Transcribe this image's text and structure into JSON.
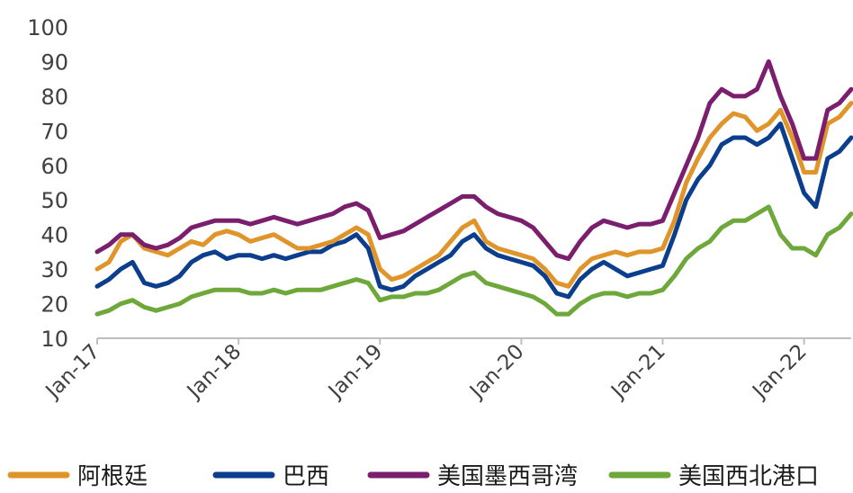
{
  "chart_data": {
    "type": "line",
    "title": "",
    "xlabel": "",
    "ylabel": "",
    "ylim": [
      10,
      100
    ],
    "yticks": [
      10,
      20,
      30,
      40,
      50,
      60,
      70,
      80,
      90,
      100
    ],
    "xlim": [
      "2017-01",
      "2022-05"
    ],
    "x_tick_labels": [
      "Jan-17",
      "Jan-18",
      "Jan-19",
      "Jan-20",
      "Jan-21",
      "Jan-22"
    ],
    "grid": false,
    "legend_position": "bottom",
    "x": [
      "2017-01",
      "2017-02",
      "2017-03",
      "2017-04",
      "2017-05",
      "2017-06",
      "2017-07",
      "2017-08",
      "2017-09",
      "2017-10",
      "2017-11",
      "2017-12",
      "2018-01",
      "2018-02",
      "2018-03",
      "2018-04",
      "2018-05",
      "2018-06",
      "2018-07",
      "2018-08",
      "2018-09",
      "2018-10",
      "2018-11",
      "2018-12",
      "2019-01",
      "2019-02",
      "2019-03",
      "2019-04",
      "2019-05",
      "2019-06",
      "2019-07",
      "2019-08",
      "2019-09",
      "2019-10",
      "2019-11",
      "2019-12",
      "2020-01",
      "2020-02",
      "2020-03",
      "2020-04",
      "2020-05",
      "2020-06",
      "2020-07",
      "2020-08",
      "2020-09",
      "2020-10",
      "2020-11",
      "2020-12",
      "2021-01",
      "2021-02",
      "2021-03",
      "2021-04",
      "2021-05",
      "2021-06",
      "2021-07",
      "2021-08",
      "2021-09",
      "2021-10",
      "2021-11",
      "2021-12",
      "2022-01",
      "2022-02",
      "2022-03",
      "2022-04",
      "2022-05"
    ],
    "series": [
      {
        "name": "阿根廷",
        "color": "#E0952A",
        "values": [
          30,
          32,
          38,
          40,
          36,
          35,
          34,
          36,
          38,
          37,
          40,
          41,
          40,
          38,
          39,
          40,
          38,
          36,
          36,
          37,
          38,
          40,
          42,
          40,
          30,
          27,
          28,
          30,
          32,
          34,
          38,
          42,
          44,
          38,
          36,
          35,
          34,
          33,
          30,
          26,
          25,
          30,
          33,
          34,
          35,
          34,
          35,
          35,
          36,
          44,
          55,
          62,
          68,
          72,
          75,
          74,
          70,
          72,
          76,
          68,
          58,
          58,
          72,
          74,
          78
        ]
      },
      {
        "name": "巴西",
        "color": "#0B3E8C",
        "values": [
          25,
          27,
          30,
          32,
          26,
          25,
          26,
          28,
          32,
          34,
          35,
          33,
          34,
          34,
          33,
          34,
          33,
          34,
          35,
          35,
          37,
          38,
          40,
          36,
          25,
          24,
          25,
          28,
          30,
          32,
          34,
          38,
          40,
          36,
          34,
          33,
          32,
          31,
          28,
          23,
          22,
          27,
          30,
          32,
          30,
          28,
          29,
          30,
          31,
          40,
          50,
          56,
          60,
          66,
          68,
          68,
          66,
          68,
          72,
          62,
          52,
          48,
          62,
          64,
          68
        ]
      },
      {
        "name": "美国墨西哥湾",
        "color": "#7B1E6E",
        "values": [
          35,
          37,
          40,
          40,
          37,
          36,
          37,
          39,
          42,
          43,
          44,
          44,
          44,
          43,
          44,
          45,
          44,
          43,
          44,
          45,
          46,
          48,
          49,
          47,
          39,
          40,
          41,
          43,
          45,
          47,
          49,
          51,
          51,
          48,
          46,
          45,
          44,
          42,
          38,
          34,
          33,
          38,
          42,
          44,
          43,
          42,
          43,
          43,
          44,
          52,
          60,
          68,
          78,
          82,
          80,
          80,
          82,
          90,
          80,
          72,
          62,
          62,
          76,
          78,
          82
        ]
      },
      {
        "name": "美国西北港口",
        "color": "#6EA83A",
        "values": [
          17,
          18,
          20,
          21,
          19,
          18,
          19,
          20,
          22,
          23,
          24,
          24,
          24,
          23,
          23,
          24,
          23,
          24,
          24,
          24,
          25,
          26,
          27,
          26,
          21,
          22,
          22,
          23,
          23,
          24,
          26,
          28,
          29,
          26,
          25,
          24,
          23,
          22,
          20,
          17,
          17,
          20,
          22,
          23,
          23,
          22,
          23,
          23,
          24,
          28,
          33,
          36,
          38,
          42,
          44,
          44,
          46,
          48,
          40,
          36,
          36,
          34,
          40,
          42,
          46
        ]
      }
    ]
  }
}
